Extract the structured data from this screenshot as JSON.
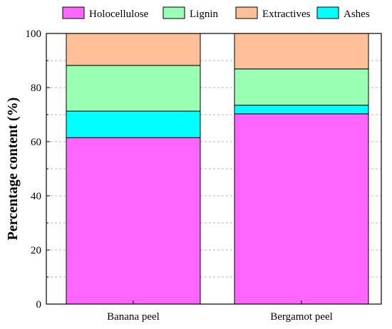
{
  "chart_data": {
    "type": "bar",
    "stacked": true,
    "title": "",
    "xlabel": "",
    "ylabel": "Percentage content (%)",
    "ylim": [
      0,
      100
    ],
    "yticks": [
      0,
      20,
      40,
      60,
      80,
      100
    ],
    "grid": "horizontal dashed",
    "legend_position": "top",
    "categories": [
      "Banana peel",
      "Bergamot peel"
    ],
    "series": [
      {
        "name": "Holocellulose",
        "color": "#ff66ff",
        "values": [
          61.5,
          70.3
        ]
      },
      {
        "name": "Ashes",
        "color": "#00ffff",
        "values": [
          9.8,
          3.2
        ]
      },
      {
        "name": "Lignin",
        "color": "#99ffb3",
        "values": [
          16.9,
          13.4
        ]
      },
      {
        "name": "Extractives",
        "color": "#ffbf99",
        "values": [
          11.8,
          13.1
        ]
      }
    ],
    "legend_order": [
      "Holocellulose",
      "Lignin",
      "Extractives",
      "Ashes"
    ]
  }
}
